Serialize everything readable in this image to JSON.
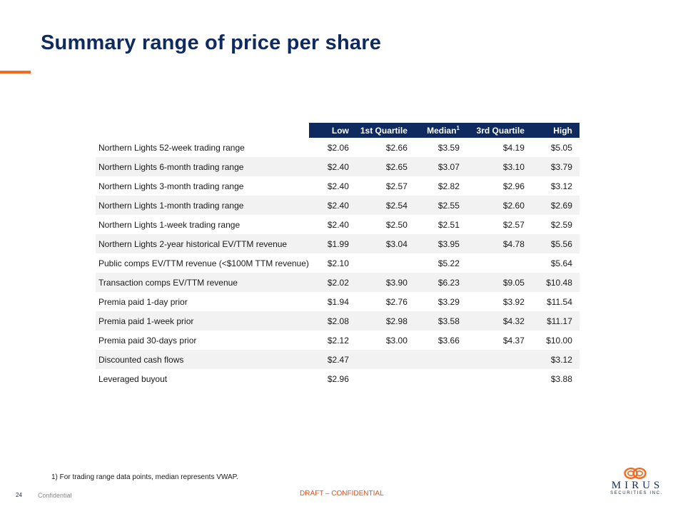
{
  "title": "Summary range of price per share",
  "table": {
    "headers": {
      "low": "Low",
      "q1": "1st Quartile",
      "median": "Median",
      "median_sup": "1",
      "q3": "3rd Quartile",
      "high": "High"
    },
    "rows": [
      {
        "label": "Northern Lights 52-week trading range",
        "low": "$2.06",
        "q1": "$2.66",
        "median": "$3.59",
        "q3": "$4.19",
        "high": "$5.05"
      },
      {
        "label": "Northern Lights 6-month trading range",
        "low": "$2.40",
        "q1": "$2.65",
        "median": "$3.07",
        "q3": "$3.10",
        "high": "$3.79"
      },
      {
        "label": "Northern Lights 3-month trading range",
        "low": "$2.40",
        "q1": "$2.57",
        "median": "$2.82",
        "q3": "$2.96",
        "high": "$3.12"
      },
      {
        "label": "Northern Lights 1-month trading range",
        "low": "$2.40",
        "q1": "$2.54",
        "median": "$2.55",
        "q3": "$2.60",
        "high": "$2.69"
      },
      {
        "label": "Northern Lights 1-week trading range",
        "low": "$2.40",
        "q1": "$2.50",
        "median": "$2.51",
        "q3": "$2.57",
        "high": "$2.59"
      },
      {
        "label": "Northern Lights 2-year historical EV/TTM revenue",
        "low": "$1.99",
        "q1": "$3.04",
        "median": "$3.95",
        "q3": "$4.78",
        "high": "$5.56"
      },
      {
        "label": "Public comps EV/TTM revenue (<$100M TTM revenue)",
        "low": "$2.10",
        "q1": "",
        "median": "$5.22",
        "q3": "",
        "high": "$5.64"
      },
      {
        "label": "Transaction comps EV/TTM revenue",
        "low": "$2.02",
        "q1": "$3.90",
        "median": "$6.23",
        "q3": "$9.05",
        "high": "$10.48"
      },
      {
        "label": "Premia paid 1-day prior",
        "low": "$1.94",
        "q1": "$2.76",
        "median": "$3.29",
        "q3": "$3.92",
        "high": "$11.54"
      },
      {
        "label": "Premia paid 1-week prior",
        "low": "$2.08",
        "q1": "$2.98",
        "median": "$3.58",
        "q3": "$4.32",
        "high": "$11.17"
      },
      {
        "label": "Premia paid 30-days prior",
        "low": "$2.12",
        "q1": "$3.00",
        "median": "$3.66",
        "q3": "$4.37",
        "high": "$10.00"
      },
      {
        "label": "Discounted cash flows",
        "low": "$2.47",
        "q1": "",
        "median": "",
        "q3": "",
        "high": "$3.12"
      },
      {
        "label": "Leveraged buyout",
        "low": "$2.96",
        "q1": "",
        "median": "",
        "q3": "",
        "high": "$3.88"
      }
    ]
  },
  "footnote": "1) For trading range data points, median represents VWAP.",
  "footer": {
    "page_number": "24",
    "confidential": "Confidential",
    "draft": "DRAFT – CONFIDENTIAL"
  },
  "logo": {
    "name": "MIRUS",
    "subtitle": "SECURITIES INC."
  },
  "colors": {
    "navy": "#0f2a5e",
    "accent_orange": "#f26b21",
    "row_shade": "#f2f2f2"
  }
}
